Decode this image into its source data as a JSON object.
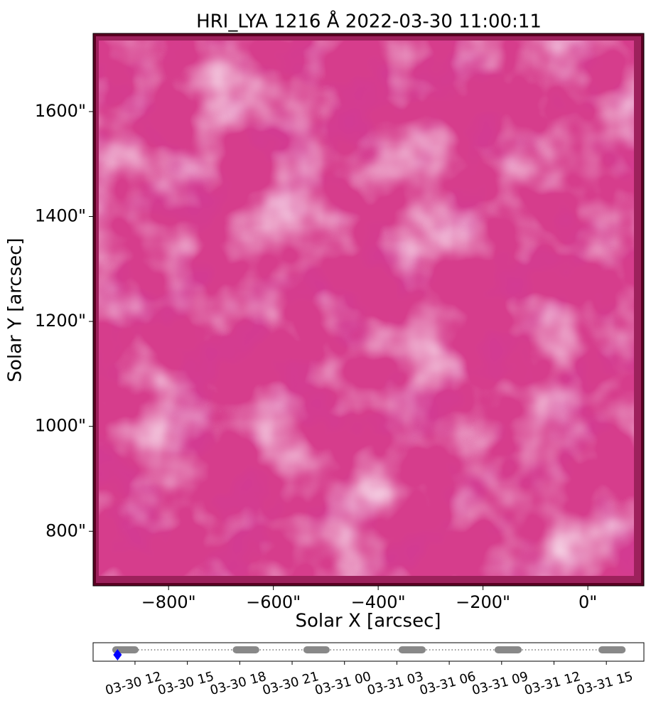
{
  "chart_data": {
    "type": "image",
    "title": "HRI_LYA 1216 Å 2022-03-30 11:00:11",
    "x_label": "Solar X [arcsec]",
    "y_label": "Solar Y [arcsec]",
    "xlim": [
      -944,
      107
    ],
    "ylim": [
      696,
      1749
    ],
    "xticks": [
      {
        "value": -800,
        "label": "−800\""
      },
      {
        "value": -600,
        "label": "−600\""
      },
      {
        "value": -400,
        "label": "−400\""
      },
      {
        "value": -200,
        "label": "−200\""
      },
      {
        "value": 0,
        "label": "0\""
      }
    ],
    "yticks": [
      {
        "value": 800,
        "label": "800\""
      },
      {
        "value": 1000,
        "label": "1000\""
      },
      {
        "value": 1200,
        "label": "1200\""
      },
      {
        "value": 1400,
        "label": "1400\""
      },
      {
        "value": 1600,
        "label": "1600\""
      }
    ],
    "colormap": [
      "#5a0022",
      "#d63d8c",
      "#ffffff"
    ],
    "timeline": {
      "xlim": [
        "03-30 09:36",
        "03-31 17:09"
      ],
      "xticks": [
        "03-30 12",
        "03-30 15",
        "03-30 18",
        "03-30 21",
        "03-31 00",
        "03-31 03",
        "03-31 06",
        "03-31 09",
        "03-31 12",
        "03-31 15"
      ],
      "segments": [
        {
          "start": "03-30 10:54",
          "end": "03-30 12:00"
        },
        {
          "start": "03-30 17:48",
          "end": "03-30 18:55"
        },
        {
          "start": "03-30 21:51",
          "end": "03-30 22:57"
        },
        {
          "start": "03-31 03:18",
          "end": "03-31 04:27"
        },
        {
          "start": "03-31 08:48",
          "end": "03-31 09:57"
        },
        {
          "start": "03-31 14:45",
          "end": "03-31 15:54"
        }
      ],
      "segment_color": "#888888",
      "current": "03-30 11:00",
      "current_color": "#0000ff"
    }
  }
}
